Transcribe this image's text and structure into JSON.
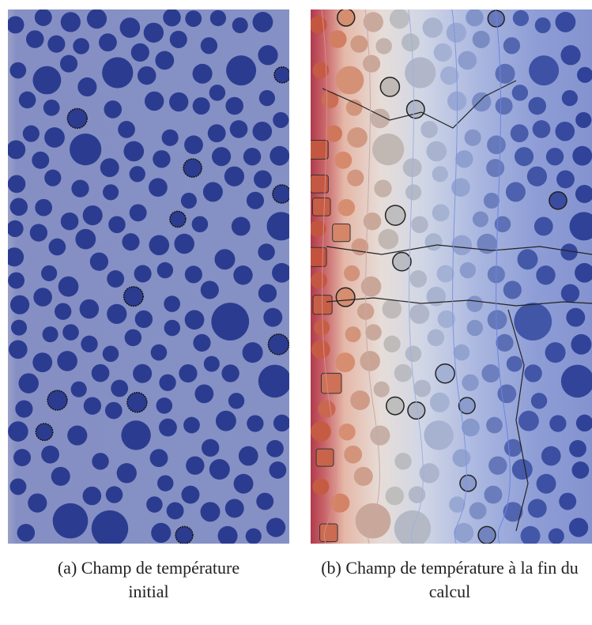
{
  "figure": {
    "panels": [
      {
        "caption": "(a) Champ de température initial"
      },
      {
        "caption": "(b) Champ de température à la fin du calcul"
      }
    ]
  }
}
